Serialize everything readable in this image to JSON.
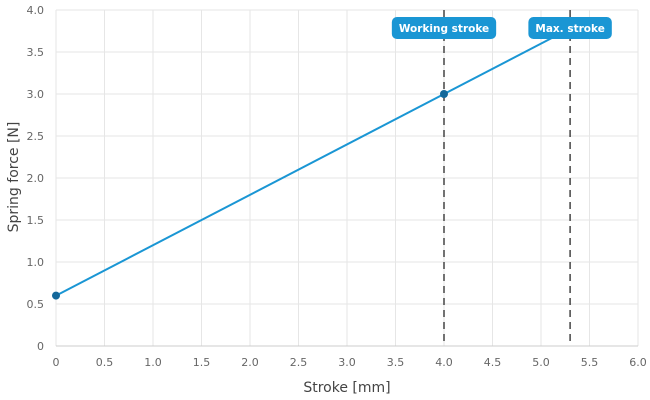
{
  "chart_data": {
    "type": "line",
    "xlabel": "Stroke [mm]",
    "ylabel": "Spring force [N]",
    "xlim": [
      0,
      6
    ],
    "ylim": [
      0,
      4
    ],
    "x_ticks": [
      0,
      0.5,
      1,
      1.5,
      2,
      2.5,
      3,
      3.5,
      4,
      4.5,
      5,
      5.5,
      6
    ],
    "x_tick_labels": [
      "0",
      "0.5",
      "1.0",
      "1.5",
      "2.0",
      "2.5",
      "3.0",
      "3.5",
      "4.0",
      "4.5",
      "5.0",
      "5.5",
      "6.0"
    ],
    "y_ticks": [
      0,
      0.5,
      1,
      1.5,
      2,
      2.5,
      3,
      3.5,
      4
    ],
    "y_tick_labels": [
      "0",
      "0.5",
      "1.0",
      "1.5",
      "2.0",
      "2.5",
      "3.0",
      "3.5",
      "4.0"
    ],
    "grid": true,
    "series": [
      {
        "x": [
          0,
          5.3
        ],
        "y": [
          0.6,
          3.78
        ],
        "markers": [
          {
            "x": 0,
            "y": 0.6
          },
          {
            "x": 4.0,
            "y": 3.0
          }
        ],
        "color": "#1a96d4"
      }
    ],
    "annotations": [
      {
        "x": 4.0,
        "label": "Working stroke"
      },
      {
        "x": 5.3,
        "label": "Max. stroke"
      }
    ],
    "colors": {
      "line": "#1a96d4",
      "marker": "#14689a",
      "flag": "#1a96d4",
      "vline": "#444444",
      "grid": "#e6e6e6"
    }
  }
}
